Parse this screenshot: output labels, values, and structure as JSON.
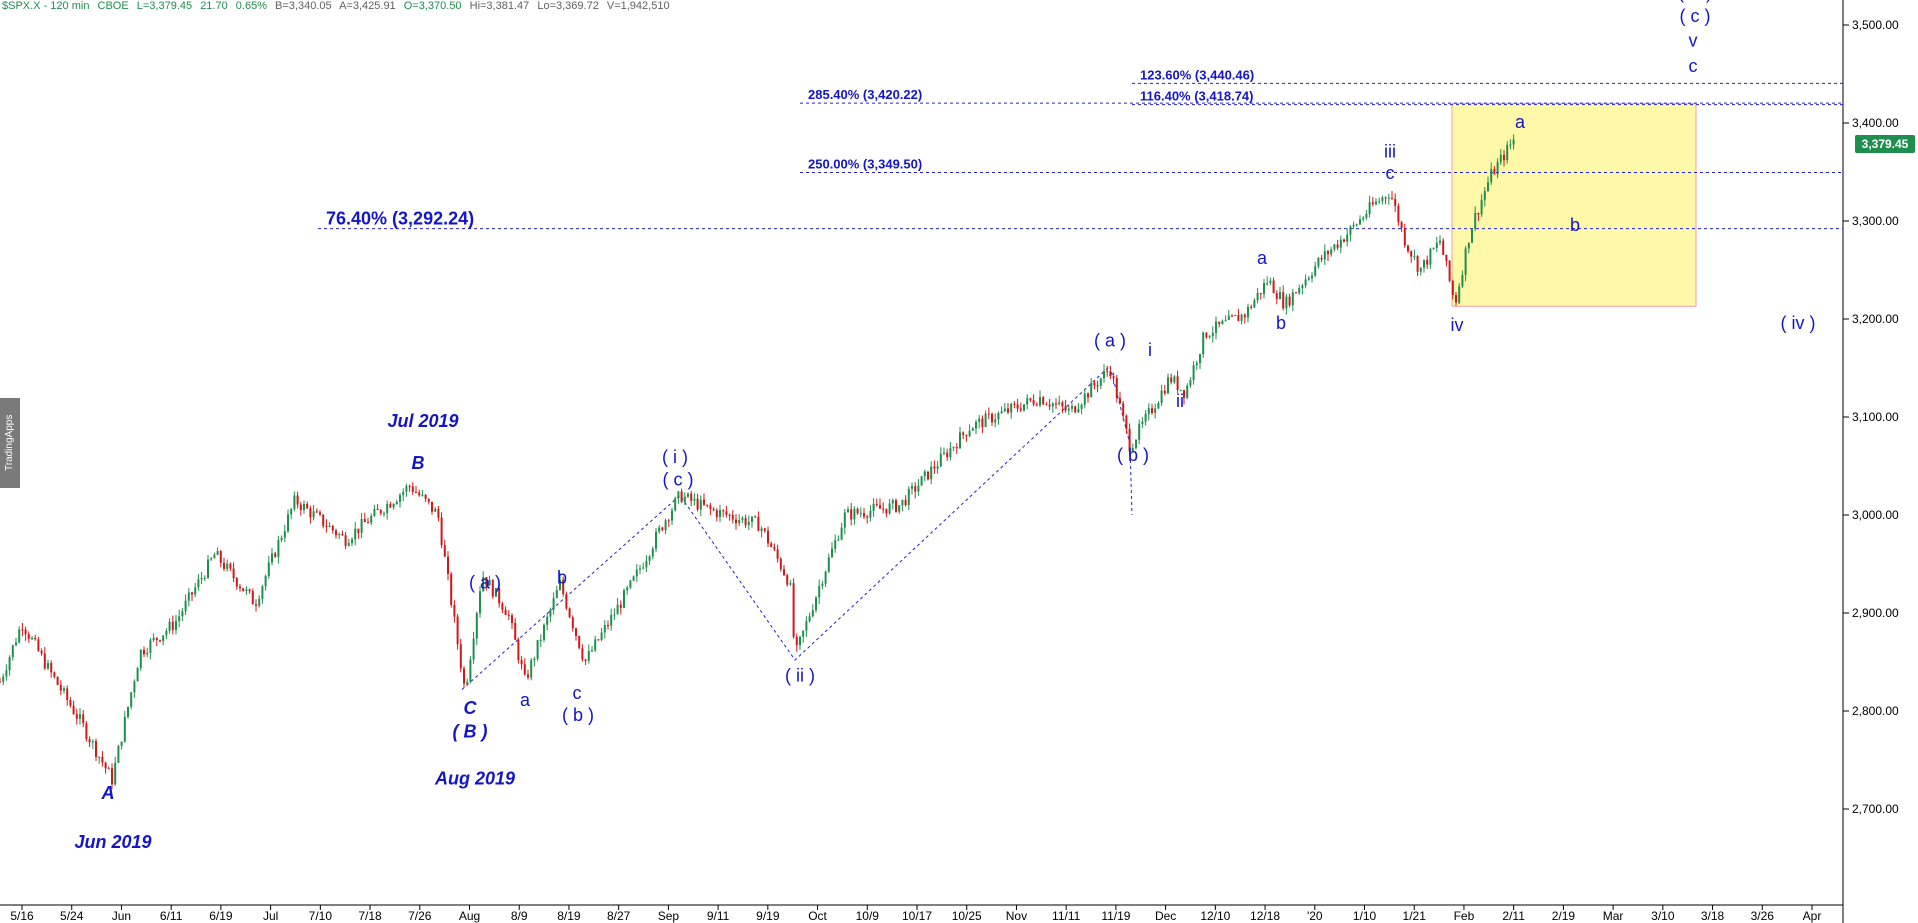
{
  "header": {
    "symbol": "$SPX.X - 120 min",
    "exchange": "CBOE",
    "last": "L=3,379.45",
    "change": "21.70",
    "change_pct": "0.65%",
    "bid": "B=3,340.05",
    "ask": "A=3,425.91",
    "open": "O=3,370.50",
    "high": "Hi=3,381.47",
    "low": "Lo=3,369.72",
    "volume": "V=1,942,510",
    "color_up": "#1f8f4e",
    "color_neutral": "#606060"
  },
  "watermark": "TradingApps",
  "price_tag": "3,379.45",
  "chart_data": {
    "type": "candlestick",
    "ylim": [
      2600,
      3550
    ],
    "y_ticks": [
      "3,500.00",
      "3,400.00",
      "3,300.00",
      "3,200.00",
      "3,100.00",
      "3,000.00",
      "2,900.00",
      "2,800.00",
      "2,700.00"
    ],
    "y_tick_values": [
      3500,
      3400,
      3300,
      3200,
      3100,
      3000,
      2900,
      2800,
      2700
    ],
    "x_ticks": [
      "5/16",
      "5/24",
      "Jun",
      "6/11",
      "6/19",
      "Jul",
      "7/10",
      "7/18",
      "7/26",
      "Aug",
      "8/9",
      "8/19",
      "8/27",
      "Sep",
      "9/11",
      "9/19",
      "Oct",
      "10/9",
      "10/17",
      "10/25",
      "Nov",
      "11/11",
      "11/19",
      "Dec",
      "12/10",
      "12/18",
      "'20",
      "1/10",
      "1/21",
      "Feb",
      "2/11",
      "2/19",
      "Mar",
      "3/10",
      "3/18",
      "3/26",
      "Apr"
    ],
    "path": [
      [
        0,
        2830
      ],
      [
        22,
        2890
      ],
      [
        50,
        2840
      ],
      [
        80,
        2790
      ],
      [
        112,
        2730
      ],
      [
        140,
        2860
      ],
      [
        175,
        2890
      ],
      [
        215,
        2960
      ],
      [
        255,
        2910
      ],
      [
        295,
        3015
      ],
      [
        345,
        2975
      ],
      [
        410,
        3030
      ],
      [
        438,
        3000
      ],
      [
        465,
        2820
      ],
      [
        482,
        2940
      ],
      [
        508,
        2900
      ],
      [
        525,
        2830
      ],
      [
        560,
        2930
      ],
      [
        585,
        2850
      ],
      [
        632,
        2930
      ],
      [
        665,
        2995
      ],
      [
        680,
        3020
      ],
      [
        710,
        3005
      ],
      [
        760,
        2990
      ],
      [
        790,
        2930
      ],
      [
        795,
        2855
      ],
      [
        820,
        2930
      ],
      [
        845,
        3000
      ],
      [
        900,
        3010
      ],
      [
        935,
        3050
      ],
      [
        970,
        3090
      ],
      [
        1040,
        3120
      ],
      [
        1070,
        3105
      ],
      [
        1110,
        3150
      ],
      [
        1130,
        3070
      ],
      [
        1170,
        3140
      ],
      [
        1185,
        3125
      ],
      [
        1205,
        3185
      ],
      [
        1245,
        3205
      ],
      [
        1268,
        3240
      ],
      [
        1285,
        3215
      ],
      [
        1320,
        3260
      ],
      [
        1350,
        3290
      ],
      [
        1372,
        3315
      ],
      [
        1390,
        3330
      ],
      [
        1405,
        3280
      ],
      [
        1420,
        3250
      ],
      [
        1440,
        3280
      ],
      [
        1455,
        3215
      ],
      [
        1470,
        3290
      ],
      [
        1490,
        3345
      ],
      [
        1515,
        3385
      ]
    ],
    "fib_lines": [
      {
        "label": "76.40% (3,292.24)",
        "value": 3292.24,
        "x0": 318,
        "big": true
      },
      {
        "label": "250.00% (3,349.50)",
        "value": 3349.5,
        "x0": 800,
        "big": false
      },
      {
        "label": "285.40% (3,420.22)",
        "value": 3420.22,
        "x0": 800,
        "big": false
      },
      {
        "label": "116.40% (3,418.74)",
        "value": 3418.74,
        "x0": 1132,
        "big": false
      },
      {
        "label": "123.60% (3,440.46)",
        "value": 3440.46,
        "x0": 1132,
        "big": false
      }
    ],
    "box": {
      "y_top": 3420,
      "y_bottom": 3213,
      "color": "#fff8a8"
    },
    "wave_lines": [
      [
        [
          462,
          2822
        ],
        [
          680,
          3020
        ],
        [
          795,
          2852
        ],
        [
          1110,
          3152
        ],
        [
          1130,
          3072
        ],
        [
          1132,
          3000
        ]
      ]
    ],
    "labels": [
      {
        "text": "A",
        "x": 108,
        "y": 2710,
        "style": "italic-bold"
      },
      {
        "text": "Jun 2019",
        "x": 113,
        "y": 2660,
        "style": "italic-bold"
      },
      {
        "text": "B",
        "x": 418,
        "y": 3047,
        "style": "italic-bold"
      },
      {
        "text": "Jul 2019",
        "x": 423,
        "y": 3090,
        "style": "italic-bold"
      },
      {
        "text": "C",
        "x": 470,
        "y": 2797,
        "style": "italic-bold"
      },
      {
        "text": "( B )",
        "x": 470,
        "y": 2773,
        "style": "italic-bold"
      },
      {
        "text": "Aug 2019",
        "x": 475,
        "y": 2725,
        "style": "italic-bold"
      },
      {
        "text": "( a )",
        "x": 485,
        "y": 2925,
        "style": "normal"
      },
      {
        "text": "a",
        "x": 525,
        "y": 2805,
        "style": "normal"
      },
      {
        "text": "b",
        "x": 562,
        "y": 2930,
        "style": "normal"
      },
      {
        "text": "c",
        "x": 577,
        "y": 2812,
        "style": "normal"
      },
      {
        "text": "( b )",
        "x": 578,
        "y": 2790,
        "style": "normal"
      },
      {
        "text": "( i )",
        "x": 675,
        "y": 3053,
        "style": "normal"
      },
      {
        "text": "( c )",
        "x": 678,
        "y": 3030,
        "style": "normal"
      },
      {
        "text": "( ii )",
        "x": 800,
        "y": 2830,
        "style": "normal"
      },
      {
        "text": "( a )",
        "x": 1110,
        "y": 3172,
        "style": "normal"
      },
      {
        "text": "( b )",
        "x": 1133,
        "y": 3055,
        "style": "normal"
      },
      {
        "text": "i",
        "x": 1150,
        "y": 3162,
        "style": "normal"
      },
      {
        "text": "ii",
        "x": 1180,
        "y": 3110,
        "style": "normal"
      },
      {
        "text": "a",
        "x": 1262,
        "y": 3256,
        "style": "normal"
      },
      {
        "text": "b",
        "x": 1281,
        "y": 3190,
        "style": "normal"
      },
      {
        "text": "iii",
        "x": 1390,
        "y": 3365,
        "style": "normal"
      },
      {
        "text": "c",
        "x": 1390,
        "y": 3343,
        "style": "normal"
      },
      {
        "text": "iv",
        "x": 1457,
        "y": 3188,
        "style": "normal"
      },
      {
        "text": "a",
        "x": 1520,
        "y": 3395,
        "style": "normal"
      },
      {
        "text": "b",
        "x": 1575,
        "y": 3290,
        "style": "normal"
      },
      {
        "text": "( iii )",
        "x": 1695,
        "y": 3527,
        "style": "normal"
      },
      {
        "text": "( c )",
        "x": 1695,
        "y": 3503,
        "style": "normal"
      },
      {
        "text": "v",
        "x": 1693,
        "y": 3478,
        "style": "normal"
      },
      {
        "text": "c",
        "x": 1693,
        "y": 3452,
        "style": "normal"
      },
      {
        "text": "( iv )",
        "x": 1798,
        "y": 3190,
        "style": "normal"
      }
    ]
  }
}
